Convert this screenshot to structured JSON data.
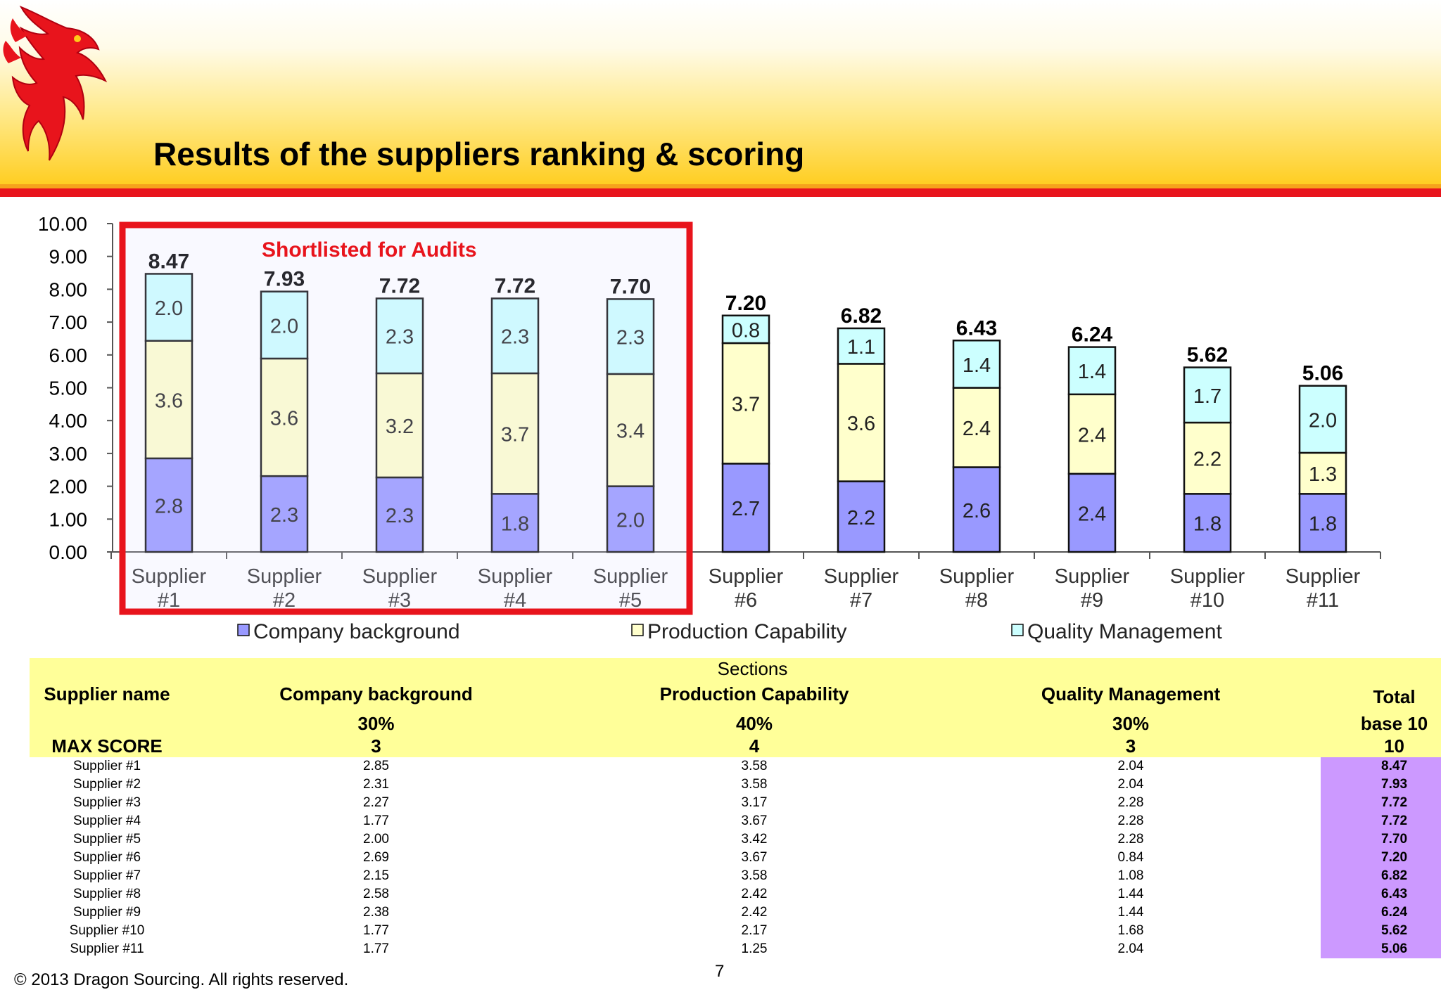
{
  "header": {
    "title": "Results of the suppliers ranking & scoring"
  },
  "chart_data": {
    "type": "bar",
    "stacked": true,
    "categories": [
      "Supplier #1",
      "Supplier #2",
      "Supplier #3",
      "Supplier #4",
      "Supplier #5",
      "Supplier #6",
      "Supplier #7",
      "Supplier #8",
      "Supplier #9",
      "Supplier #10",
      "Supplier #11"
    ],
    "category_lines": [
      [
        "Supplier",
        "#1"
      ],
      [
        "Supplier",
        "#2"
      ],
      [
        "Supplier",
        "#3"
      ],
      [
        "Supplier",
        "#4"
      ],
      [
        "Supplier",
        "#5"
      ],
      [
        "Supplier",
        "#6"
      ],
      [
        "Supplier",
        "#7"
      ],
      [
        "Supplier",
        "#8"
      ],
      [
        "Supplier",
        "#9"
      ],
      [
        "Supplier",
        "#10"
      ],
      [
        "Supplier",
        "#11"
      ]
    ],
    "series": [
      {
        "name": "Company background",
        "color": "#9999ff",
        "values": [
          2.85,
          2.31,
          2.27,
          1.77,
          2.0,
          2.69,
          2.15,
          2.58,
          2.38,
          1.77,
          1.77
        ],
        "labels": [
          "2.8",
          "2.3",
          "2.3",
          "1.8",
          "2.0",
          "2.7",
          "2.2",
          "2.6",
          "2.4",
          "1.8",
          "1.8"
        ]
      },
      {
        "name": "Production Capability",
        "color": "#ffffcc",
        "values": [
          3.58,
          3.58,
          3.17,
          3.67,
          3.42,
          3.67,
          3.58,
          2.42,
          2.42,
          2.17,
          1.25
        ],
        "labels": [
          "3.6",
          "3.6",
          "3.2",
          "3.7",
          "3.4",
          "3.7",
          "3.6",
          "2.4",
          "2.4",
          "2.2",
          "1.3"
        ]
      },
      {
        "name": "Quality Management",
        "color": "#ccffff",
        "values": [
          2.04,
          2.04,
          2.28,
          2.28,
          2.28,
          0.84,
          1.08,
          1.44,
          1.44,
          1.68,
          2.04
        ],
        "labels": [
          "2.0",
          "2.0",
          "2.3",
          "2.3",
          "2.3",
          "0.8",
          "1.1",
          "1.4",
          "1.4",
          "1.7",
          "2.0"
        ]
      }
    ],
    "totals": [
      "8.47",
      "7.93",
      "7.72",
      "7.72",
      "7.70",
      "7.20",
      "6.82",
      "6.43",
      "6.24",
      "5.62",
      "5.06"
    ],
    "ylim": [
      0,
      10
    ],
    "yticks": [
      "0.00",
      "1.00",
      "2.00",
      "3.00",
      "4.00",
      "5.00",
      "6.00",
      "7.00",
      "8.00",
      "9.00",
      "10.00"
    ],
    "legend_position": "bottom",
    "annotation": {
      "text": "Shortlisted for Audits",
      "color": "#e8141c",
      "categories": [
        "Supplier #1",
        "Supplier #2",
        "Supplier #3",
        "Supplier #4",
        "Supplier #5"
      ]
    }
  },
  "table": {
    "sections_label": "Sections",
    "supplier_col": "Supplier name",
    "max_label": "MAX SCORE",
    "total_label": "Total",
    "total_base": "base 10",
    "total_max": "10",
    "columns": [
      {
        "name": "Company background",
        "weight": "30%",
        "max": "3"
      },
      {
        "name": "Production Capability",
        "weight": "40%",
        "max": "4"
      },
      {
        "name": "Quality Management",
        "weight": "30%",
        "max": "3"
      }
    ],
    "rows": [
      {
        "name": "Supplier #1",
        "cb": "2.85",
        "pc": "3.58",
        "qm": "2.04",
        "total": "8.47"
      },
      {
        "name": "Supplier #2",
        "cb": "2.31",
        "pc": "3.58",
        "qm": "2.04",
        "total": "7.93"
      },
      {
        "name": "Supplier #3",
        "cb": "2.27",
        "pc": "3.17",
        "qm": "2.28",
        "total": "7.72"
      },
      {
        "name": "Supplier #4",
        "cb": "1.77",
        "pc": "3.67",
        "qm": "2.28",
        "total": "7.72"
      },
      {
        "name": "Supplier #5",
        "cb": "2.00",
        "pc": "3.42",
        "qm": "2.28",
        "total": "7.70"
      },
      {
        "name": "Supplier #6",
        "cb": "2.69",
        "pc": "3.67",
        "qm": "0.84",
        "total": "7.20"
      },
      {
        "name": "Supplier #7",
        "cb": "2.15",
        "pc": "3.58",
        "qm": "1.08",
        "total": "6.82"
      },
      {
        "name": "Supplier #8",
        "cb": "2.58",
        "pc": "2.42",
        "qm": "1.44",
        "total": "6.43"
      },
      {
        "name": "Supplier #9",
        "cb": "2.38",
        "pc": "2.42",
        "qm": "1.44",
        "total": "6.24"
      },
      {
        "name": "Supplier #10",
        "cb": "1.77",
        "pc": "2.17",
        "qm": "1.68",
        "total": "5.62"
      },
      {
        "name": "Supplier #11",
        "cb": "1.77",
        "pc": "1.25",
        "qm": "2.04",
        "total": "5.06"
      }
    ]
  },
  "footer": {
    "copyright": "© 2013 Dragon Sourcing. All rights reserved.",
    "page_number": "7"
  },
  "colors": {
    "accent_red": "#e8141c",
    "header_gold": "#ffcc1a",
    "table_header": "#ffff99",
    "total_cell": "#cc99ff"
  }
}
